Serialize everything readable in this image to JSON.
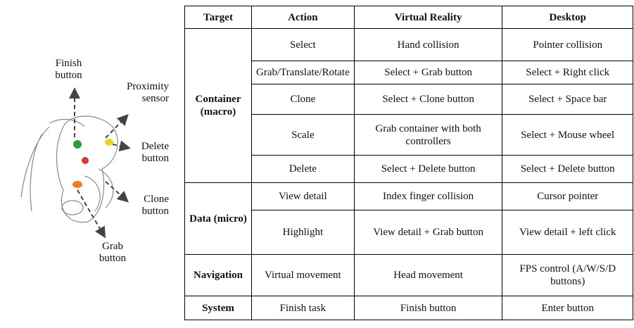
{
  "figure": {
    "labels": {
      "finish": "Finish button",
      "proximity": "Proximity sensor",
      "delete": "Delete button",
      "clone": "Clone button",
      "grab": "Grab button"
    },
    "table": {
      "header": [
        "Target",
        "Action",
        "Virtual Reality",
        "Desktop"
      ],
      "groups": [
        {
          "target": "Container (macro)",
          "rows": [
            [
              "Select",
              "Hand collision",
              "Pointer collision"
            ],
            [
              "Grab/Translate/Rotate",
              "Select + Grab button",
              "Select + Right click"
            ],
            [
              "Clone",
              "Select + Clone button",
              "Select + Space bar"
            ],
            [
              "Scale",
              "Grab container with both controllers",
              "Select + Mouse wheel"
            ],
            [
              "Delete",
              "Select + Delete button",
              "Select + Delete button"
            ]
          ]
        },
        {
          "target": "Data (micro)",
          "rows": [
            [
              "View detail",
              "Index finger collision",
              "Cursor pointer"
            ],
            [
              "Highlight",
              "View detail + Grab button",
              "View detail + left click"
            ]
          ]
        },
        {
          "target": "Navigation",
          "rows": [
            [
              "Virtual movement",
              "Head movement",
              "FPS control (A/W/S/D buttons)"
            ]
          ]
        },
        {
          "target": "System",
          "rows": [
            [
              "Finish task",
              "Finish button",
              "Enter button"
            ]
          ]
        }
      ]
    }
  }
}
